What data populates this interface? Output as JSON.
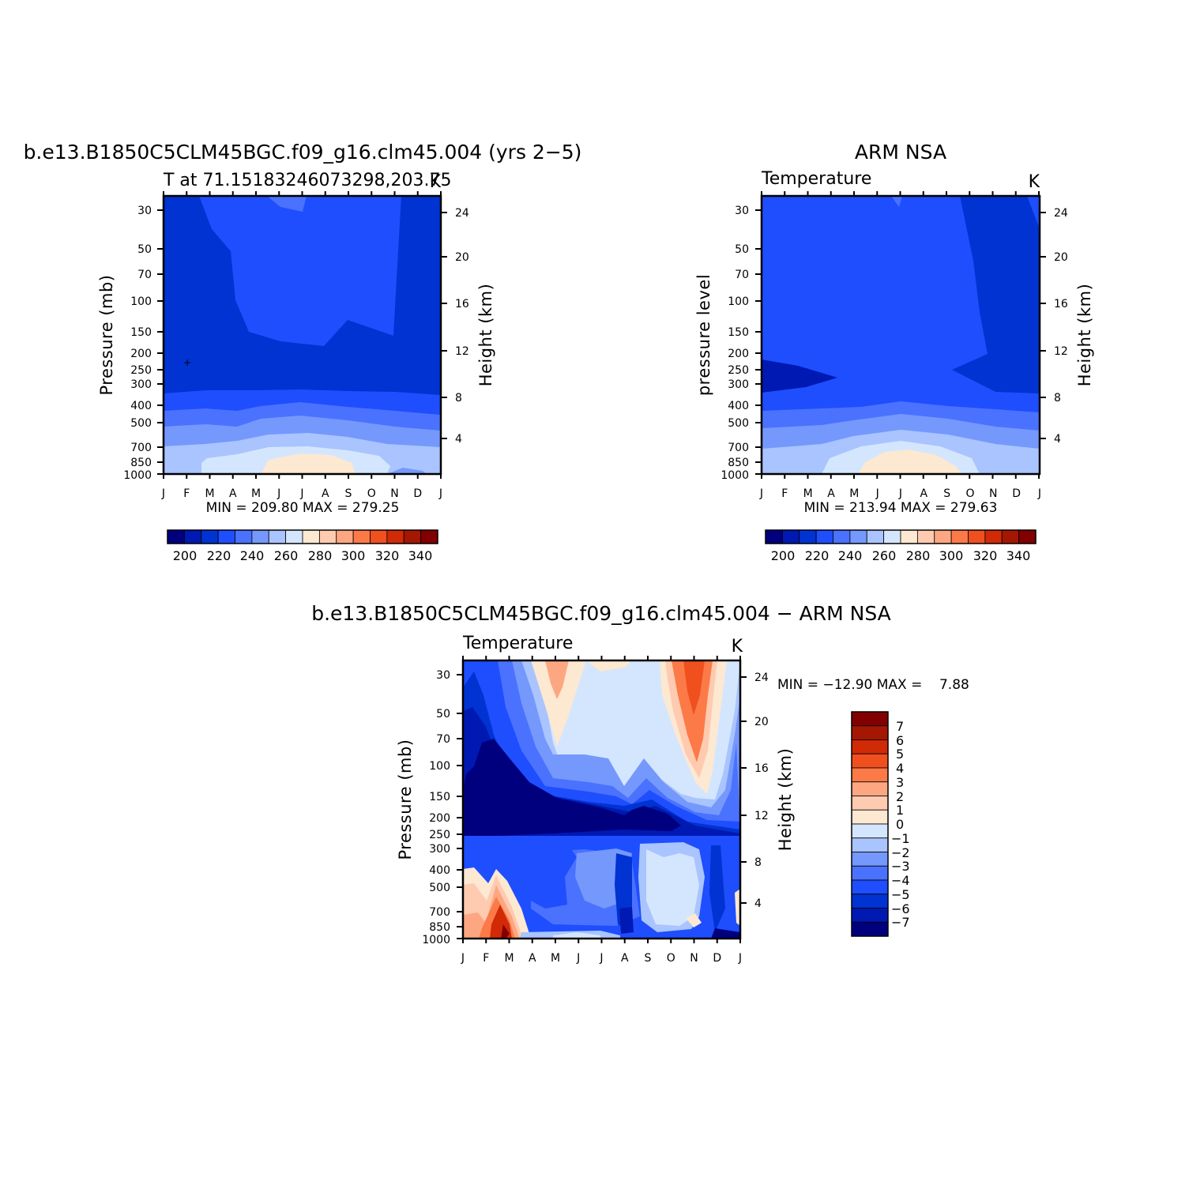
{
  "chart_data": [
    {
      "type": "heatmap",
      "panel": "model",
      "title": "b.e13.B1850C5CLM45BGC.f09_g16.clm45.004 (yrs 2−5)",
      "subtitle_left": "T at 71.15183246073298,203.75",
      "subtitle_right": "K",
      "xlabel": "",
      "ylabel": "Pressure (mb)",
      "ylabel_right": "Height (km)",
      "x_ticks": [
        "J",
        "F",
        "M",
        "A",
        "M",
        "J",
        "J",
        "A",
        "S",
        "O",
        "N",
        "D",
        "J"
      ],
      "y_ticks": [
        "30",
        "50",
        "70",
        "100",
        "150",
        "200",
        "250",
        "300",
        "400",
        "500",
        "700",
        "850",
        "1000"
      ],
      "y_ticks_right": [
        "24",
        "20",
        "16",
        "12",
        "8",
        "4"
      ],
      "stats": "MIN = 209.80 MAX = 279.25",
      "colorbar_labels": [
        "200",
        "220",
        "240",
        "260",
        "280",
        "300",
        "320",
        "340"
      ],
      "marker": "+"
    },
    {
      "type": "heatmap",
      "panel": "obs",
      "title": "ARM NSA",
      "subtitle_left": "Temperature",
      "subtitle_right": "K",
      "xlabel": "",
      "ylabel": "pressure level",
      "ylabel_right": "Height (km)",
      "x_ticks": [
        "J",
        "F",
        "M",
        "A",
        "M",
        "J",
        "J",
        "A",
        "S",
        "O",
        "N",
        "D",
        "J"
      ],
      "y_ticks": [
        "30",
        "50",
        "70",
        "100",
        "150",
        "200",
        "250",
        "300",
        "400",
        "500",
        "700",
        "850",
        "1000"
      ],
      "y_ticks_right": [
        "24",
        "20",
        "16",
        "12",
        "8",
        "4"
      ],
      "stats": "MIN = 213.94 MAX = 279.63",
      "colorbar_labels": [
        "200",
        "220",
        "240",
        "260",
        "280",
        "300",
        "320",
        "340"
      ]
    },
    {
      "type": "heatmap",
      "panel": "difference",
      "title": "b.e13.B1850C5CLM45BGC.f09_g16.clm45.004 − ARM NSA",
      "subtitle_left": "Temperature",
      "subtitle_right": "K",
      "xlabel": "",
      "ylabel": "Pressure (mb)",
      "ylabel_right": "Height (km)",
      "x_ticks": [
        "J",
        "F",
        "M",
        "A",
        "M",
        "J",
        "J",
        "A",
        "S",
        "O",
        "N",
        "D",
        "J"
      ],
      "y_ticks": [
        "30",
        "50",
        "70",
        "100",
        "150",
        "200",
        "250",
        "300",
        "400",
        "500",
        "700",
        "850",
        "1000"
      ],
      "y_ticks_right": [
        "24",
        "20",
        "16",
        "12",
        "8",
        "4"
      ],
      "stats": "MIN = −12.90 MAX =    7.88",
      "colorbar_labels": [
        "7",
        "6",
        "5",
        "4",
        "3",
        "2",
        "1",
        "0",
        "−1",
        "−2",
        "−3",
        "−4",
        "−5",
        "−6",
        "−7"
      ]
    }
  ],
  "palette": [
    "#00007f",
    "#0019b2",
    "#0033d1",
    "#1e4efe",
    "#4a72fe",
    "#7598fd",
    "#a9c4fe",
    "#d4e6fe",
    "#fde8d2",
    "#fecbb0",
    "#fda782",
    "#fc7a48",
    "#f0501e",
    "#d02a07",
    "#a41803",
    "#820000"
  ],
  "colors": {
    "model_base": "#0033d1",
    "model_region": "#1e4efe",
    "obs_region": "#1e4efe",
    "obs_base": "#0033d1",
    "diff_neutral": "#d4e6fe"
  }
}
